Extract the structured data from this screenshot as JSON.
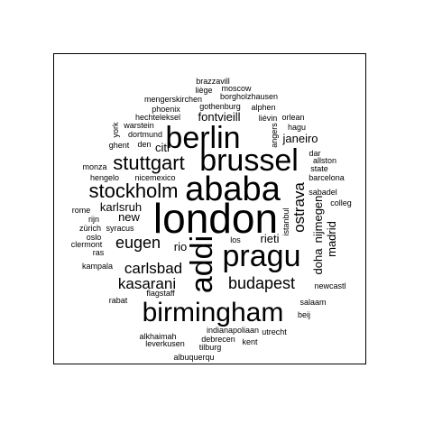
{
  "words": [
    {
      "text": "brazzavill"
    },
    {
      "text": "liège"
    },
    {
      "text": "moscow"
    },
    {
      "text": "mengerskirchen"
    },
    {
      "text": "borgholzhausen"
    },
    {
      "text": "phoenix"
    },
    {
      "text": "gothenburg"
    },
    {
      "text": "alphen"
    },
    {
      "text": "hechteleksel"
    },
    {
      "text": "fontvieill"
    },
    {
      "text": "liévin"
    },
    {
      "text": "orlean"
    },
    {
      "text": "york"
    },
    {
      "text": "warstein"
    },
    {
      "text": "angers"
    },
    {
      "text": "hagu"
    },
    {
      "text": "dortmund"
    },
    {
      "text": "berlin"
    },
    {
      "text": "ghent"
    },
    {
      "text": "den"
    },
    {
      "text": "citi"
    },
    {
      "text": "janeiro"
    },
    {
      "text": "dar"
    },
    {
      "text": "allston"
    },
    {
      "text": "monza"
    },
    {
      "text": "stuttgart"
    },
    {
      "text": "brussel"
    },
    {
      "text": "state"
    },
    {
      "text": "hengelo"
    },
    {
      "text": "nicemexico"
    },
    {
      "text": "barcelona"
    },
    {
      "text": "stockholm"
    },
    {
      "text": "ababa"
    },
    {
      "text": "ostrava"
    },
    {
      "text": "sabadel"
    },
    {
      "text": "colleg"
    },
    {
      "text": "rome"
    },
    {
      "text": "karlsruh"
    },
    {
      "text": "rijn"
    },
    {
      "text": "new"
    },
    {
      "text": "london"
    },
    {
      "text": "nijmegen"
    },
    {
      "text": "zürich"
    },
    {
      "text": "syracus"
    },
    {
      "text": "istanbul"
    },
    {
      "text": "madrid"
    },
    {
      "text": "oslo"
    },
    {
      "text": "eugen"
    },
    {
      "text": "rieti"
    },
    {
      "text": "clermont"
    },
    {
      "text": "los"
    },
    {
      "text": "ras"
    },
    {
      "text": "rio"
    },
    {
      "text": "addi"
    },
    {
      "text": "pragu"
    },
    {
      "text": "doha"
    },
    {
      "text": "kampala"
    },
    {
      "text": "carlsbad"
    },
    {
      "text": "kasarani"
    },
    {
      "text": "budapest"
    },
    {
      "text": "newcastl"
    },
    {
      "text": "flagstaff"
    },
    {
      "text": "rabat"
    },
    {
      "text": "birmingham"
    },
    {
      "text": "salaam"
    },
    {
      "text": "beij"
    },
    {
      "text": "indianapoliaan"
    },
    {
      "text": "alkhaimah"
    },
    {
      "text": "utrecht"
    },
    {
      "text": "debrecen"
    },
    {
      "text": "leverkusen"
    },
    {
      "text": "kent"
    },
    {
      "text": "tilburg"
    },
    {
      "text": "albuquerqu"
    }
  ]
}
